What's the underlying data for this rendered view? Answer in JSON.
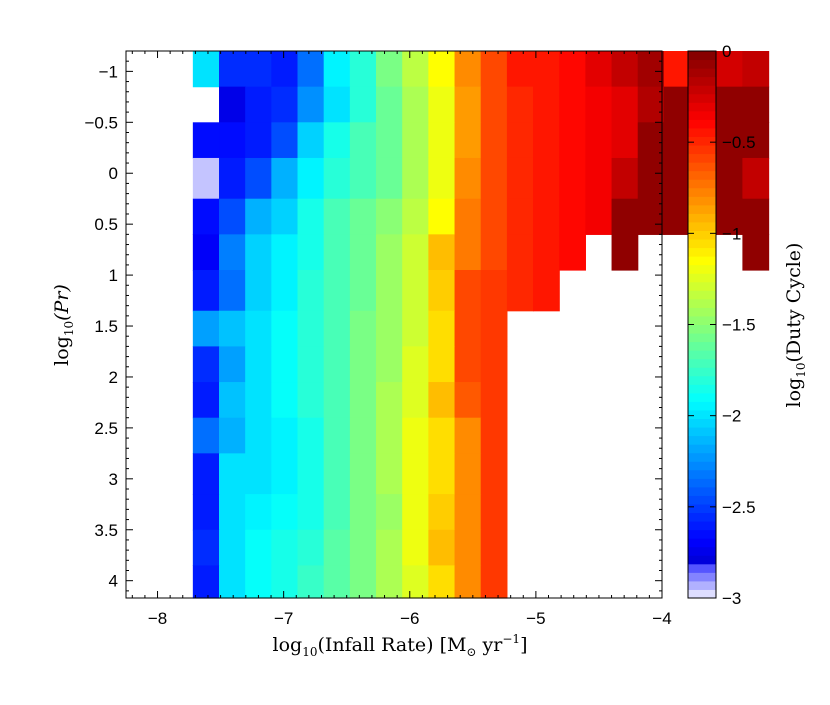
{
  "chart_data": {
    "type": "heatmap",
    "title": "",
    "xlabel": "log10(Infall Rate) [M⊙ yr−1]",
    "xlabel_parts": {
      "pre": "log",
      "sub": "10",
      "mid": "(Infall Rate) [M",
      "sun": "⊙",
      "post": " yr",
      "sup": "−1",
      "end": "]"
    },
    "ylabel": "log10(Pr)",
    "ylabel_parts": {
      "pre": "log",
      "sub": "10",
      "post": "(Pr)"
    },
    "xlim": [
      -8.25,
      -4
    ],
    "ylim": [
      4.17,
      -1.2
    ],
    "y_inverted": true,
    "xticks": [
      -8,
      -7,
      -6,
      -5,
      -4
    ],
    "xtick_labels": [
      "−8",
      "−7",
      "−6",
      "−5",
      "−4"
    ],
    "yticks": [
      -1,
      -0.5,
      0,
      0.5,
      1,
      1.5,
      2,
      2.5,
      3,
      3.5,
      4
    ],
    "ytick_labels": [
      "−1",
      "−0.5",
      "0",
      "0.5",
      "1",
      "1.5",
      "2",
      "2.5",
      "3",
      "3.5",
      "4"
    ],
    "x_bin_start": -7.72,
    "x_bin_width": 0.2075,
    "y_bins": [
      -1.2,
      -0.85,
      -0.5,
      -0.15,
      0.25,
      0.6,
      0.95,
      1.35,
      1.7,
      2.05,
      2.4,
      2.75,
      3.15,
      3.5,
      3.85,
      4.17
    ],
    "z_values_log10_duty_cycle": [
      [
        -2.0,
        -2.55,
        -2.55,
        -2.6,
        -2.35,
        -1.95,
        -1.8,
        -1.55,
        -1.35,
        -1.15,
        -0.8,
        -0.6,
        -0.45,
        -0.45,
        -0.4,
        -0.3,
        -0.2,
        -0.1,
        -0.45,
        -0.1,
        -0.25,
        -0.2
      ],
      [
        null,
        -2.75,
        -2.6,
        -2.55,
        -2.25,
        -2.0,
        -1.8,
        -1.6,
        -1.4,
        -1.2,
        -0.85,
        -0.6,
        -0.5,
        -0.45,
        -0.4,
        -0.35,
        -0.3,
        -0.15,
        -0.05,
        -0.05,
        -0.05,
        -0.05
      ],
      [
        -2.65,
        -2.65,
        -2.6,
        -2.45,
        -2.05,
        -1.85,
        -1.7,
        -1.6,
        -1.4,
        -1.2,
        -0.85,
        -0.6,
        -0.5,
        -0.45,
        -0.4,
        -0.35,
        -0.3,
        -0.05,
        -0.05,
        -0.05,
        -0.05,
        -0.05
      ],
      [
        -2.95,
        -2.6,
        -2.45,
        -2.15,
        -1.95,
        -1.8,
        -1.7,
        -1.6,
        -1.4,
        -1.2,
        -0.8,
        -0.6,
        -0.5,
        -0.45,
        -0.4,
        -0.35,
        -0.2,
        -0.05,
        -0.05,
        -0.05,
        -0.05,
        -0.2
      ],
      [
        -2.65,
        -2.45,
        -2.15,
        -2.05,
        -1.85,
        -1.7,
        -1.6,
        -1.5,
        -1.35,
        -1.15,
        -0.75,
        -0.6,
        -0.5,
        -0.45,
        -0.4,
        -0.35,
        -0.05,
        -0.05,
        -0.05,
        -0.05,
        -0.05,
        -0.05
      ],
      [
        -2.7,
        -2.3,
        -2.05,
        -1.95,
        -1.85,
        -1.7,
        -1.6,
        -1.45,
        -1.3,
        -0.95,
        -0.75,
        -0.6,
        -0.5,
        -0.45,
        -0.4,
        null,
        -0.05,
        null,
        null,
        null,
        null,
        -0.05
      ],
      [
        -2.6,
        -2.35,
        -2.05,
        -1.95,
        -1.8,
        -1.7,
        -1.6,
        -1.45,
        -1.3,
        -1.0,
        -0.6,
        -0.55,
        -0.5,
        -0.45,
        null,
        null,
        null,
        null,
        null,
        null,
        null,
        null
      ],
      [
        -2.2,
        -2.1,
        -2.0,
        -1.9,
        -1.8,
        -1.7,
        -1.55,
        -1.45,
        -1.3,
        -1.05,
        -0.6,
        -0.55,
        null,
        null,
        null,
        null,
        null,
        null,
        null,
        null,
        null,
        null
      ],
      [
        -2.55,
        -2.2,
        -2.0,
        -1.9,
        -1.8,
        -1.7,
        -1.55,
        -1.45,
        -1.25,
        -1.05,
        -0.6,
        -0.55,
        null,
        null,
        null,
        null,
        null,
        null,
        null,
        null,
        null,
        null
      ],
      [
        -2.6,
        -2.1,
        -2.0,
        -1.9,
        -1.8,
        -1.7,
        -1.55,
        -1.4,
        -1.25,
        -0.95,
        -0.65,
        -0.55,
        null,
        null,
        null,
        null,
        null,
        null,
        null,
        null,
        null,
        null
      ],
      [
        -2.35,
        -2.15,
        -2.0,
        -1.95,
        -1.85,
        -1.7,
        -1.55,
        -1.4,
        -1.2,
        -1.05,
        -0.8,
        -0.55,
        null,
        null,
        null,
        null,
        null,
        null,
        null,
        null,
        null,
        null
      ],
      [
        -2.6,
        -2.0,
        -2.0,
        -1.95,
        -1.85,
        -1.7,
        -1.55,
        -1.4,
        -1.2,
        -1.05,
        -0.8,
        -0.55,
        null,
        null,
        null,
        null,
        null,
        null,
        null,
        null,
        null,
        null
      ],
      [
        -2.6,
        -2.0,
        -1.95,
        -1.9,
        -1.85,
        -1.7,
        -1.55,
        -1.45,
        -1.2,
        -1.0,
        -0.8,
        -0.55,
        null,
        null,
        null,
        null,
        null,
        null,
        null,
        null,
        null,
        null
      ],
      [
        -2.55,
        -2.0,
        -1.9,
        -1.85,
        -1.8,
        -1.65,
        -1.55,
        -1.4,
        -1.2,
        -0.95,
        -0.8,
        -0.55,
        null,
        null,
        null,
        null,
        null,
        null,
        null,
        null,
        null,
        null
      ],
      [
        -2.6,
        -2.0,
        -1.9,
        -1.85,
        -1.75,
        -1.65,
        -1.55,
        -1.4,
        -1.25,
        -1.05,
        -0.8,
        -0.55,
        null,
        null,
        null,
        null,
        null,
        null,
        null,
        null,
        null,
        null
      ]
    ],
    "colorbar": {
      "label": "log10(Duty Cycle)",
      "label_parts": {
        "pre": "log",
        "sub": "10",
        "post": "(Duty Cycle)"
      },
      "range": [
        -3,
        0
      ],
      "ticks": [
        0,
        -0.5,
        -1,
        -1.5,
        -2,
        -2.5,
        -3
      ],
      "tick_labels": [
        "0",
        "−0.5",
        "−1",
        "−1.5",
        "−2",
        "−2.5",
        "−3"
      ],
      "colormap": "jet",
      "levels": 64
    },
    "grid": false,
    "legend": "none"
  }
}
